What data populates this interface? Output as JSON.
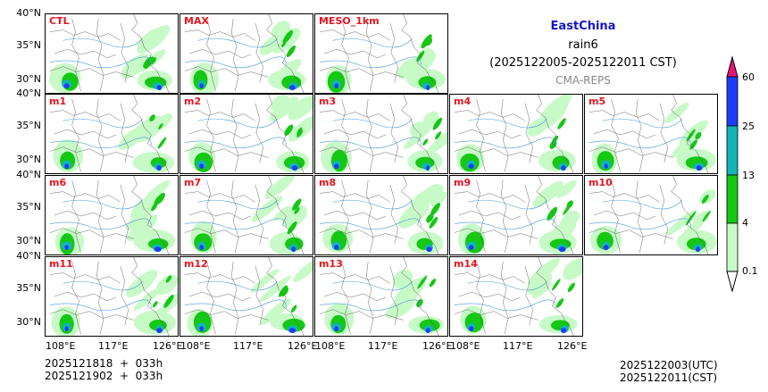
{
  "header": {
    "region": "EastChina",
    "variable": "rain6",
    "period": "(2025122005-2025122011 CST)",
    "source": "CMA-REPS"
  },
  "panels": [
    "CTL",
    "MAX",
    "MESO_1km",
    "m1",
    "m2",
    "m3",
    "m4",
    "m5",
    "m6",
    "m7",
    "m8",
    "m9",
    "m10",
    "m11",
    "m12",
    "m13",
    "m14"
  ],
  "axes": {
    "lat_ticks": [
      "40°N",
      "35°N",
      "30°N"
    ],
    "lon_ticks": [
      "108°E",
      "117°E",
      "126°E"
    ]
  },
  "colorbar": {
    "levels": [
      "0.1",
      "4",
      "13",
      "25",
      "60"
    ],
    "colors": [
      "#c8fac8",
      "#14c814",
      "#14b4b4",
      "#1e3cff",
      "#e6147a"
    ]
  },
  "footer": {
    "init_utc_line": "2025121818  +  033h",
    "init_cst_line": "2025121902  +  033h",
    "valid_utc": "2025122003(UTC)",
    "valid_cst": "2025122011(CST)"
  }
}
